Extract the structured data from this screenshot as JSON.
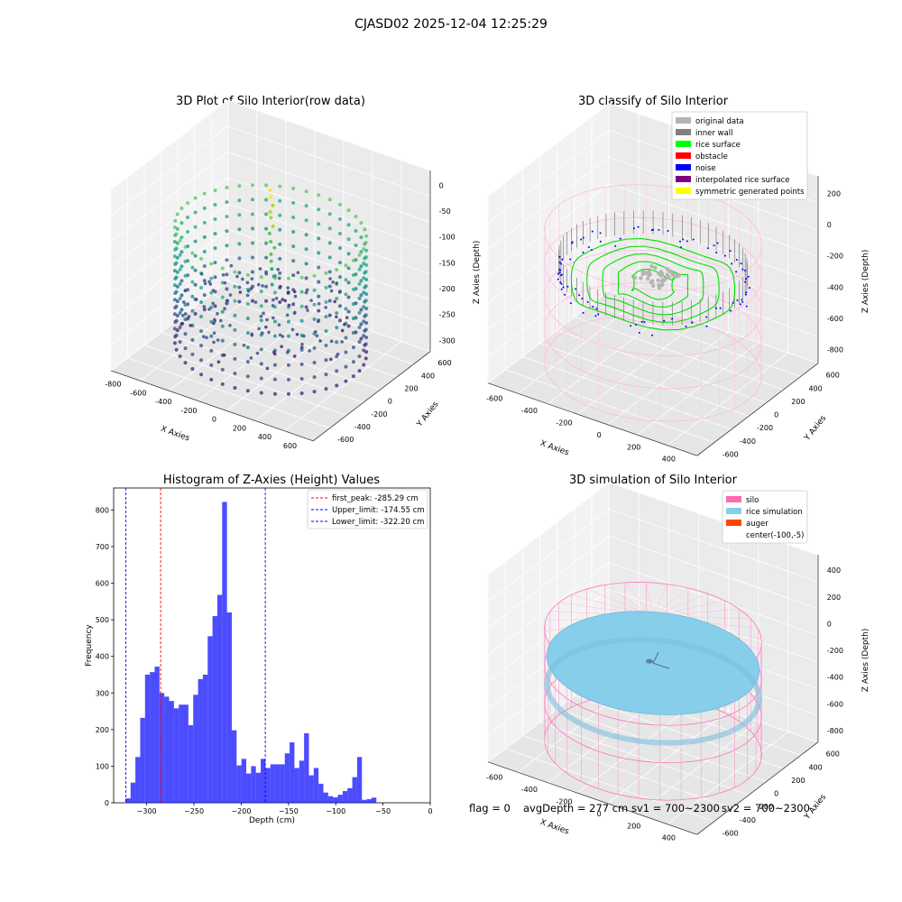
{
  "suptitle": "CJASD02 2025-12-04 12:25:29",
  "panel1": {
    "title": "3D Plot of Silo Interior(row data)",
    "xlabel": "X Axies",
    "ylabel": "Y Axies",
    "zlabel": "Z Axies (Depth)",
    "xticks": [
      "-800",
      "-600",
      "-400",
      "-200",
      "0",
      "200",
      "400",
      "600"
    ],
    "yticks": [
      "-600",
      "-400",
      "-200",
      "0",
      "200",
      "400",
      "600"
    ],
    "zticks": [
      "0",
      "-50",
      "-100",
      "-150",
      "-200",
      "-250",
      "-300"
    ],
    "colormap": "viridis"
  },
  "panel2": {
    "title": "3D classify of Silo Interior",
    "xlabel": "X Axies",
    "ylabel": "Y Axies",
    "zlabel": "Z Axies (Depth)",
    "xticks": [
      "-600",
      "-400",
      "-200",
      "0",
      "200",
      "400"
    ],
    "yticks": [
      "-600",
      "-400",
      "-200",
      "0",
      "200",
      "400",
      "600"
    ],
    "zticks": [
      "200",
      "0",
      "-200",
      "-400",
      "-600",
      "-800"
    ],
    "legend": [
      {
        "label": "original data",
        "color": "#b4b4b4"
      },
      {
        "label": "inner wall",
        "color": "#808080"
      },
      {
        "label": "rice surface",
        "color": "#00ff00"
      },
      {
        "label": "obstacle",
        "color": "#ff0000"
      },
      {
        "label": "noise",
        "color": "#0000ff"
      },
      {
        "label": "interpolated rice surface",
        "color": "#800080"
      },
      {
        "label": "symmetric generated points",
        "color": "#ffff00"
      }
    ]
  },
  "panel4": {
    "title": "3D simulation of Silo Interior",
    "xlabel": "X Axies",
    "ylabel": "Y Axies",
    "zlabel": "Z Axies (Depth)",
    "xticks": [
      "-600",
      "-400",
      "-200",
      "0",
      "200",
      "400"
    ],
    "yticks": [
      "-600",
      "-400",
      "-200",
      "0",
      "200",
      "400",
      "600"
    ],
    "zticks": [
      "400",
      "200",
      "0",
      "-200",
      "-400",
      "-600",
      "-800"
    ],
    "legend": [
      {
        "label": "silo",
        "color": "#ff69b4"
      },
      {
        "label": "rice simulation",
        "color": "#87ceeb"
      },
      {
        "label": "auger",
        "color": "#ff4500"
      },
      {
        "label": "center(-100,-5)",
        "color": ""
      }
    ]
  },
  "status": {
    "flag": "flag = 0",
    "avg": "avgDepth = 277 cm",
    "sv1": "sv1 = 700~2300",
    "sv2": "sv2 = 700~2300"
  },
  "chart_data": [
    {
      "type": "histogram",
      "title": "Histogram of Z-Axies (Height) Values",
      "xlabel": "Depth (cm)",
      "ylabel": "Frequency",
      "xlim": [
        -335,
        0
      ],
      "ylim": [
        0,
        860
      ],
      "xticks": [
        -300,
        -250,
        -200,
        -150,
        -100,
        -50,
        0
      ],
      "yticks": [
        0,
        100,
        200,
        300,
        400,
        500,
        600,
        700,
        800
      ],
      "bar_color": "#0000ff",
      "bin_start": -322.2,
      "bin_width": 5.1,
      "counts": [
        12,
        55,
        125,
        232,
        350,
        357,
        372,
        300,
        290,
        278,
        258,
        268,
        268,
        212,
        295,
        338,
        350,
        455,
        510,
        568,
        822,
        520,
        198,
        102,
        120,
        80,
        100,
        82,
        120,
        95,
        105,
        105,
        105,
        135,
        165,
        95,
        115,
        190,
        75,
        95,
        52,
        28,
        18,
        15,
        22,
        32,
        40,
        70,
        125,
        8,
        10,
        14
      ],
      "vlines": [
        {
          "label": "first_peak: -285.29 cm",
          "x": -285.29,
          "color": "#ff0000"
        },
        {
          "label": "Upper_limit: -174.55 cm",
          "x": -174.55,
          "color": "#0000ff"
        },
        {
          "label": "Lower_limit: -322.20 cm",
          "x": -322.2,
          "color": "#0000ff"
        }
      ]
    }
  ]
}
